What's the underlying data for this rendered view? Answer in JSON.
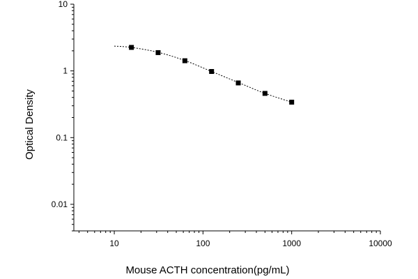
{
  "chart_data": {
    "type": "scatter",
    "title": "",
    "xlabel": "Mouse ACTH concentration(pg/mL)",
    "ylabel": "Optical Density",
    "x_scale": "log",
    "y_scale": "log",
    "xlim": [
      3.5,
      10000
    ],
    "ylim": [
      0.004,
      10
    ],
    "x_ticks": [
      "10",
      "100",
      "1000",
      "10000"
    ],
    "y_ticks": [
      "0.01",
      "0.1",
      "1",
      "10"
    ],
    "grid": false,
    "legend": "none",
    "series": [
      {
        "x": [
          15.6,
          31.2,
          62.5,
          125,
          250,
          500,
          1000
        ],
        "y": [
          2.25,
          1.88,
          1.42,
          0.98,
          0.66,
          0.46,
          0.34
        ]
      }
    ],
    "fit_curve": {
      "style": "dotted",
      "x": [
        10,
        15.6,
        31.2,
        62.5,
        125,
        250,
        500,
        1000
      ],
      "y": [
        2.35,
        2.25,
        1.9,
        1.43,
        0.98,
        0.67,
        0.46,
        0.34
      ]
    }
  }
}
